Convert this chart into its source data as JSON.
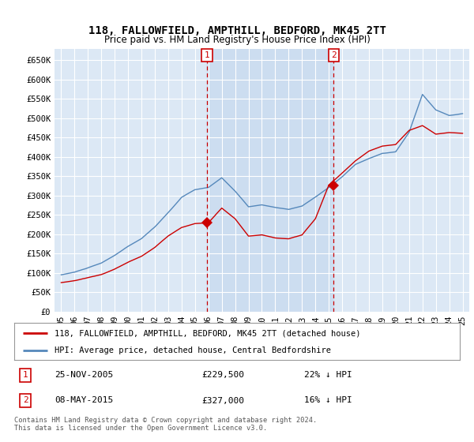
{
  "title": "118, FALLOWFIELD, AMPTHILL, BEDFORD, MK45 2TT",
  "subtitle": "Price paid vs. HM Land Registry's House Price Index (HPI)",
  "legend_line1": "118, FALLOWFIELD, AMPTHILL, BEDFORD, MK45 2TT (detached house)",
  "legend_line2": "HPI: Average price, detached house, Central Bedfordshire",
  "footnote": "Contains HM Land Registry data © Crown copyright and database right 2024.\nThis data is licensed under the Open Government Licence v3.0.",
  "sale1_label": "1",
  "sale1_date": "25-NOV-2005",
  "sale1_price": 229500,
  "sale1_hpi": "22% ↓ HPI",
  "sale2_label": "2",
  "sale2_date": "08-MAY-2015",
  "sale2_price": 327000,
  "sale2_hpi": "16% ↓ HPI",
  "ylim_min": 0,
  "ylim_max": 680000,
  "yticks": [
    0,
    50000,
    100000,
    150000,
    200000,
    250000,
    300000,
    350000,
    400000,
    450000,
    500000,
    550000,
    600000,
    650000
  ],
  "background_color": "#ffffff",
  "plot_bg_color": "#dce8f5",
  "grid_color": "#ffffff",
  "sale_line_color": "#cc0000",
  "hpi_line_color": "#5588bb",
  "vline_color": "#cc0000",
  "annotation_box_color": "#cc0000",
  "shade_color": "#ccddf0",
  "sale1_x": 2005.9,
  "sale1_y": 229500,
  "sale2_x": 2015.37,
  "sale2_y": 327000,
  "xlim_min": 1994.5,
  "xlim_max": 2025.5,
  "xtick_years": [
    1995,
    1996,
    1997,
    1998,
    1999,
    2000,
    2001,
    2002,
    2003,
    2004,
    2005,
    2006,
    2007,
    2008,
    2009,
    2010,
    2011,
    2012,
    2013,
    2014,
    2015,
    2016,
    2017,
    2018,
    2019,
    2020,
    2021,
    2022,
    2023,
    2024,
    2025
  ]
}
